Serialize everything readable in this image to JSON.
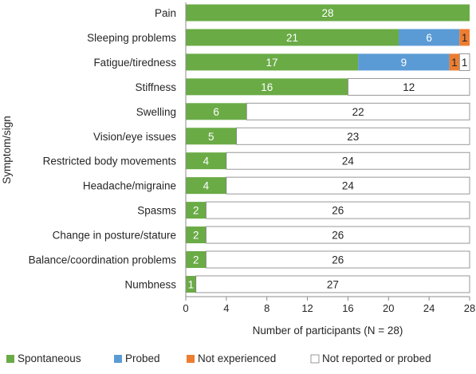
{
  "chart_data": {
    "type": "bar",
    "orientation": "horizontal",
    "stacked": true,
    "categories": [
      "Pain",
      "Sleeping problems",
      "Fatigue/tiredness",
      "Stiffness",
      "Swelling",
      "Vision/eye issues",
      "Restricted body movements",
      "Headache/migraine",
      "Spasms",
      "Change in posture/stature",
      "Balance/coordination problems",
      "Numbness"
    ],
    "series": [
      {
        "name": "Spontaneous",
        "color": "#6aab46",
        "values": [
          28,
          21,
          17,
          16,
          6,
          5,
          4,
          4,
          2,
          2,
          2,
          1
        ]
      },
      {
        "name": "Probed",
        "color": "#5b9bd5",
        "values": [
          0,
          6,
          9,
          0,
          0,
          0,
          0,
          0,
          0,
          0,
          0,
          0
        ]
      },
      {
        "name": "Not experienced",
        "color": "#ed7d31",
        "values": [
          0,
          1,
          1,
          0,
          0,
          0,
          0,
          0,
          0,
          0,
          0,
          0
        ]
      },
      {
        "name": "Not reported or probed",
        "color": "#ffffff",
        "values": [
          0,
          0,
          1,
          12,
          22,
          23,
          24,
          24,
          26,
          26,
          26,
          27
        ]
      }
    ],
    "xlabel": "Number of participants (N = 28)",
    "ylabel": "Symptom/sign",
    "xlim": [
      0,
      28
    ],
    "xticks": [
      0,
      4,
      8,
      12,
      16,
      20,
      24,
      28
    ],
    "grid": false,
    "legend_position": "bottom"
  }
}
